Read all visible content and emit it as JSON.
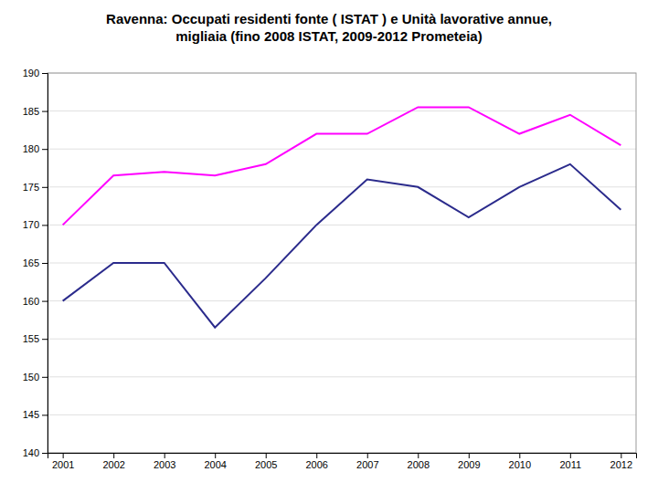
{
  "chart_data": {
    "type": "line",
    "title": "Ravenna: Occupati residenti fonte ( ISTAT ) e Unità lavorative annue,\nmigliaia (fino 2008 ISTAT, 2009-2012 Prometeia)",
    "x": [
      2001,
      2002,
      2003,
      2004,
      2005,
      2006,
      2007,
      2008,
      2009,
      2010,
      2011,
      2012
    ],
    "series": [
      {
        "color": "#FF00FF",
        "values": [
          170,
          176.5,
          177,
          176.5,
          178,
          182,
          182,
          185.5,
          185.5,
          182,
          184.5,
          180.5
        ]
      },
      {
        "color": "#2B2B8C",
        "values": [
          160,
          165,
          165,
          156.5,
          163,
          170,
          176,
          175,
          171,
          175,
          178,
          172
        ]
      }
    ],
    "xlim": [
      2000.7,
      2012.3
    ],
    "xticks": [
      2001,
      2002,
      2003,
      2004,
      2005,
      2006,
      2007,
      2008,
      2009,
      2010,
      2011,
      2012
    ],
    "ylim": [
      140,
      190
    ],
    "yticks": [
      140,
      145,
      150,
      155,
      160,
      165,
      170,
      175,
      180,
      185,
      190
    ],
    "grid": true
  }
}
